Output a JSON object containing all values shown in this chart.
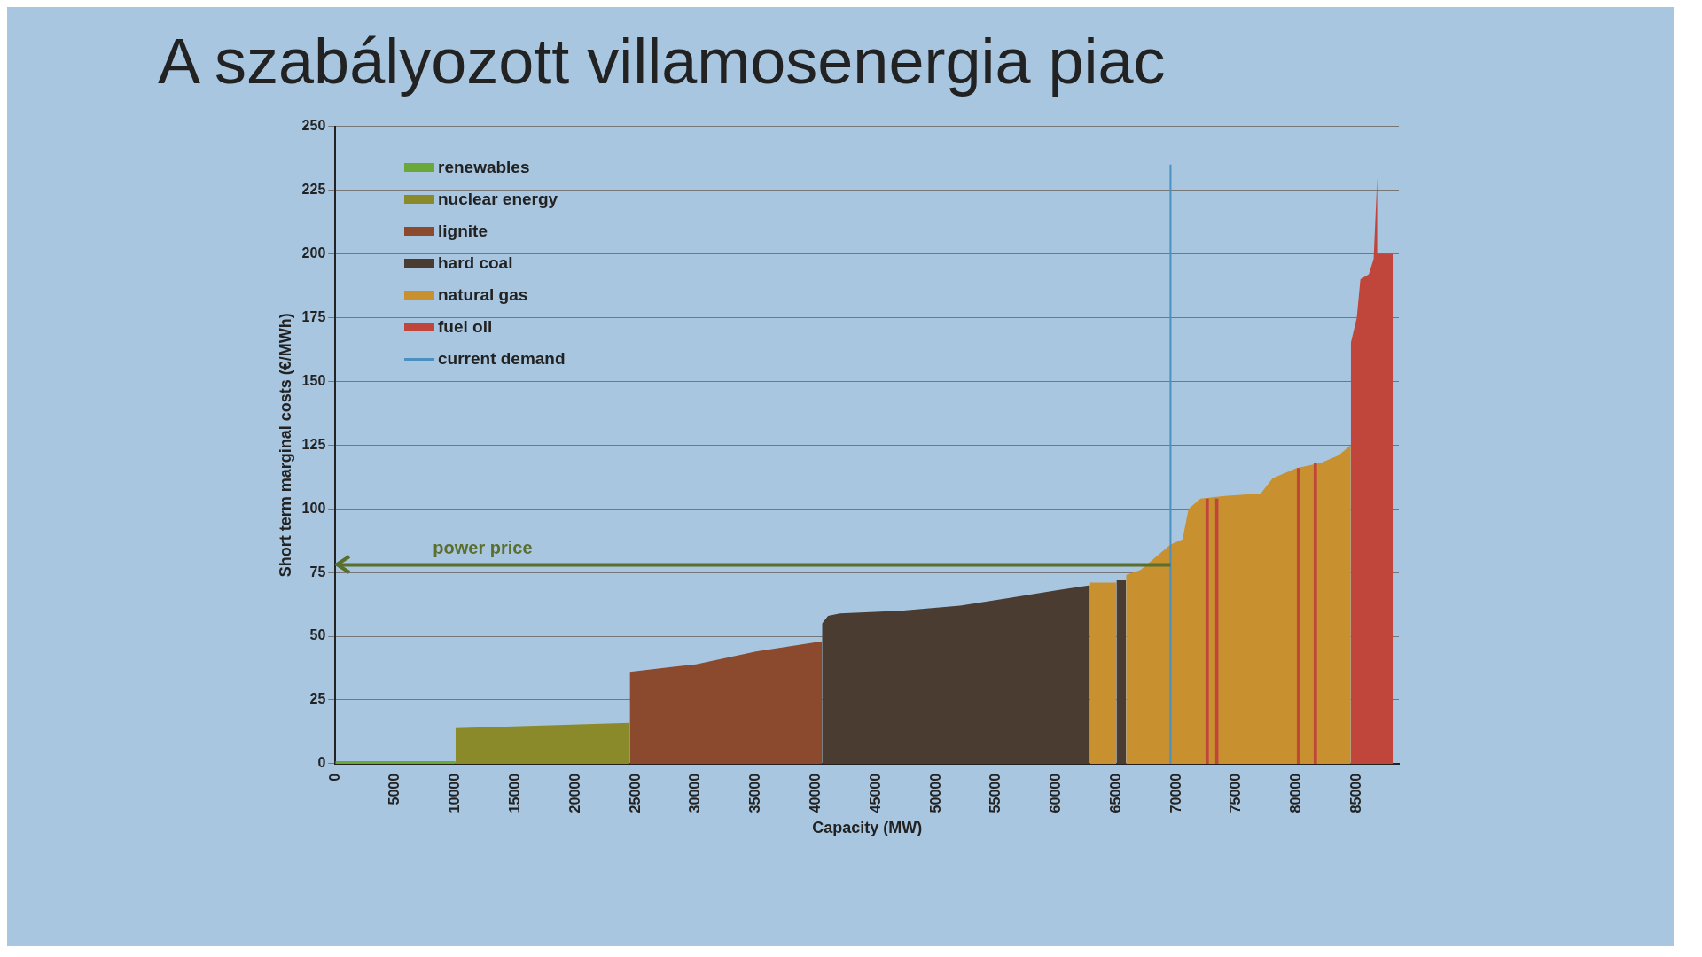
{
  "chart_data": {
    "type": "area",
    "title": "A szabályozott villamosenergia piac",
    "xlabel": "Capacity (MW)",
    "ylabel": "Short term marginal costs (€/MWh)",
    "series": [
      {
        "name": "renewables",
        "color": "#6aa83a",
        "x": [
          0,
          10000
        ],
        "values": [
          1,
          1
        ]
      },
      {
        "name": "nuclear energy",
        "color": "#8a8a2a",
        "x": [
          10000,
          24500
        ],
        "values": [
          14,
          16
        ]
      },
      {
        "name": "lignite",
        "color": "#8b4a2e",
        "x": [
          24500,
          30000,
          35000,
          40500
        ],
        "values": [
          36,
          39,
          44,
          48
        ]
      },
      {
        "name": "hard coal",
        "color": "#4a3c30",
        "x": [
          40500,
          41000,
          42000,
          47000,
          52000,
          56000,
          60000,
          62800,
          null,
          65000,
          65800
        ],
        "values": [
          55,
          58,
          59,
          60,
          62,
          65,
          68,
          70,
          null,
          72,
          72
        ]
      },
      {
        "name": "natural gas",
        "color": "#c8902e",
        "x": [
          62800,
          65000,
          null,
          65800,
          67000,
          68000,
          69000,
          69500,
          70500,
          71000,
          72000,
          74000,
          77000,
          78000,
          80000,
          82000,
          83500,
          84500
        ],
        "values": [
          71,
          71,
          null,
          74,
          76,
          80,
          84,
          86,
          88,
          100,
          104,
          105,
          106,
          112,
          116,
          118,
          121,
          125
        ]
      },
      {
        "name": "fuel oil",
        "color": "#c0463c",
        "x": [
          72400,
          72700,
          null,
          73200,
          73500,
          null,
          80000,
          80300,
          null,
          81400,
          81700,
          null,
          84500,
          85000,
          85300,
          86000,
          86400,
          86700,
          86700,
          88000
        ],
        "values": [
          104,
          104,
          null,
          104,
          104,
          null,
          116,
          116,
          null,
          118,
          118,
          null,
          165,
          175,
          190,
          192,
          198,
          230,
          200,
          200
        ]
      },
      {
        "name": "current demand",
        "type": "line",
        "color": "#4a90c0",
        "x": [
          69500,
          69500
        ],
        "values": [
          0,
          235
        ]
      }
    ],
    "ref_lines": [
      {
        "axis": "y",
        "value": 78,
        "label": "power price",
        "color": "#5a6e2e"
      }
    ],
    "xlim": [
      0,
      88500
    ],
    "xticks": [
      0,
      5000,
      10000,
      15000,
      20000,
      25000,
      30000,
      35000,
      40000,
      45000,
      50000,
      55000,
      60000,
      65000,
      70000,
      75000,
      80000,
      85000
    ],
    "ylim": [
      0,
      250
    ],
    "yticks": [
      0,
      25,
      50,
      75,
      100,
      125,
      150,
      175,
      200,
      225,
      250
    ],
    "grid": "y",
    "legend": "top left"
  }
}
